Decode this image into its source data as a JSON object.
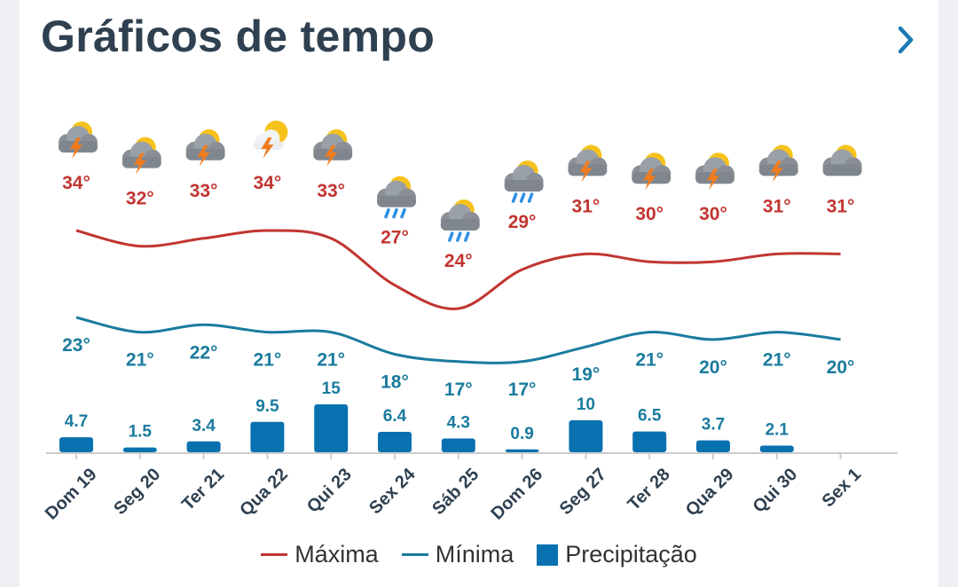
{
  "header": {
    "title": "Gráficos de tempo",
    "chevron_icon": "chevron-right-icon"
  },
  "colors": {
    "max": "#c13530",
    "min": "#1a7b9e",
    "precip": "#0a71b0",
    "title": "#2f4050",
    "axis": "#cccccc"
  },
  "legend": [
    {
      "label": "Máxima",
      "type": "line",
      "color": "#c13530"
    },
    {
      "label": "Mínima",
      "type": "line",
      "color": "#1a7b9e"
    },
    {
      "label": "Precipitação",
      "type": "box",
      "color": "#0a71b0"
    }
  ],
  "chart_data": {
    "type": "line+bar",
    "categories": [
      "Dom 19",
      "Seg 20",
      "Ter 21",
      "Qua 22",
      "Qui 23",
      "Sex 24",
      "Sáb 25",
      "Dom 26",
      "Seg 27",
      "Ter 28",
      "Qua 29",
      "Qui 30",
      "Sex 1"
    ],
    "icons": [
      "thunderstorm-sun-icon",
      "thunderstorm-sun-icon",
      "thunderstorm-sun-icon",
      "partly-cloudy-thunder-icon",
      "thunderstorm-sun-icon",
      "rain-sun-icon",
      "rain-sun-icon",
      "rain-sun-icon",
      "thunderstorm-sun-icon",
      "thunderstorm-sun-icon",
      "thunderstorm-sun-icon",
      "thunderstorm-sun-icon",
      "cloudy-sun-icon"
    ],
    "series": [
      {
        "name": "Máxima",
        "kind": "line",
        "values": [
          34,
          32,
          33,
          34,
          33,
          27,
          24,
          29,
          31,
          30,
          30,
          31,
          31
        ],
        "labels": [
          "34°",
          "32°",
          "33°",
          "34°",
          "33°",
          "27°",
          "24°",
          "29°",
          "31°",
          "30°",
          "30°",
          "31°",
          "31°"
        ]
      },
      {
        "name": "Mínima",
        "kind": "line",
        "values": [
          23,
          21,
          22,
          21,
          21,
          18,
          17,
          17,
          19,
          21,
          20,
          21,
          20
        ],
        "labels": [
          "23°",
          "21°",
          "22°",
          "21°",
          "21°",
          "18°",
          "17°",
          "17°",
          "19°",
          "21°",
          "20°",
          "21°",
          "20°"
        ]
      },
      {
        "name": "Precipitação",
        "kind": "bar",
        "values": [
          4.7,
          1.5,
          3.4,
          9.5,
          15,
          6.4,
          4.3,
          0.9,
          10,
          6.5,
          3.7,
          2.1,
          0
        ],
        "labels": [
          "4.7",
          "1.5",
          "3.4",
          "9.5",
          "15",
          "6.4",
          "4.3",
          "0.9",
          "10",
          "6.5",
          "3.7",
          "2.1",
          ""
        ]
      }
    ],
    "xlabel": "",
    "ylabel": ""
  }
}
